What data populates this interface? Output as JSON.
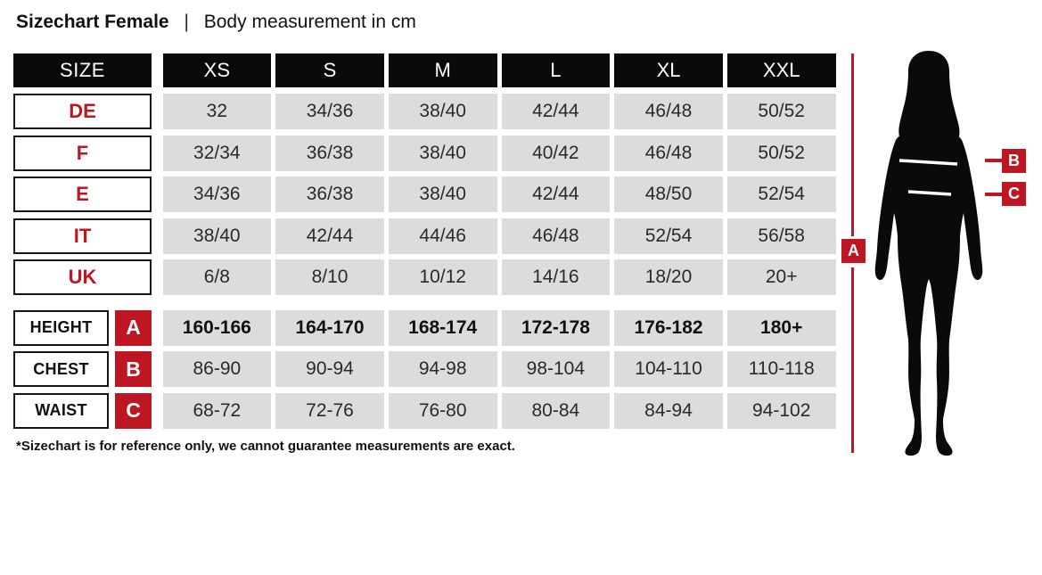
{
  "title": {
    "main": "Sizechart Female",
    "separator": "|",
    "subtitle": "Body measurement in cm"
  },
  "table": {
    "size_header": "SIZE",
    "columns": [
      "XS",
      "S",
      "M",
      "L",
      "XL",
      "XXL"
    ],
    "size_rows": [
      {
        "label": "DE",
        "values": [
          "32",
          "34/36",
          "38/40",
          "42/44",
          "46/48",
          "50/52"
        ]
      },
      {
        "label": "F",
        "values": [
          "32/34",
          "36/38",
          "38/40",
          "40/42",
          "46/48",
          "50/52"
        ]
      },
      {
        "label": "E",
        "values": [
          "34/36",
          "36/38",
          "38/40",
          "42/44",
          "48/50",
          "52/54"
        ]
      },
      {
        "label": "IT",
        "values": [
          "38/40",
          "42/44",
          "44/46",
          "46/48",
          "52/54",
          "56/58"
        ]
      },
      {
        "label": "UK",
        "values": [
          "6/8",
          "8/10",
          "10/12",
          "14/16",
          "18/20",
          "20+"
        ]
      }
    ],
    "measurement_rows": [
      {
        "label": "HEIGHT",
        "marker": "A",
        "bold": true,
        "values": [
          "160-166",
          "164-170",
          "168-174",
          "172-178",
          "176-182",
          "180+"
        ]
      },
      {
        "label": "CHEST",
        "marker": "B",
        "bold": false,
        "values": [
          "86-90",
          "90-94",
          "94-98",
          "98-104",
          "104-110",
          "110-118"
        ]
      },
      {
        "label": "WAIST",
        "marker": "C",
        "bold": false,
        "values": [
          "68-72",
          "72-76",
          "76-80",
          "80-84",
          "84-94",
          "94-102"
        ]
      }
    ]
  },
  "footnote": "*Sizechart is for reference only, we cannot guarantee measurements are exact.",
  "figure": {
    "height_marker": "A",
    "chest_marker": "B",
    "waist_marker": "C",
    "icon": "female-body-silhouette"
  },
  "colors": {
    "accent_red": "#be1622",
    "cell_gray": "#dcdcdc",
    "header_black": "#0a0a0a",
    "silhouette_black": "#0a0a0a"
  }
}
